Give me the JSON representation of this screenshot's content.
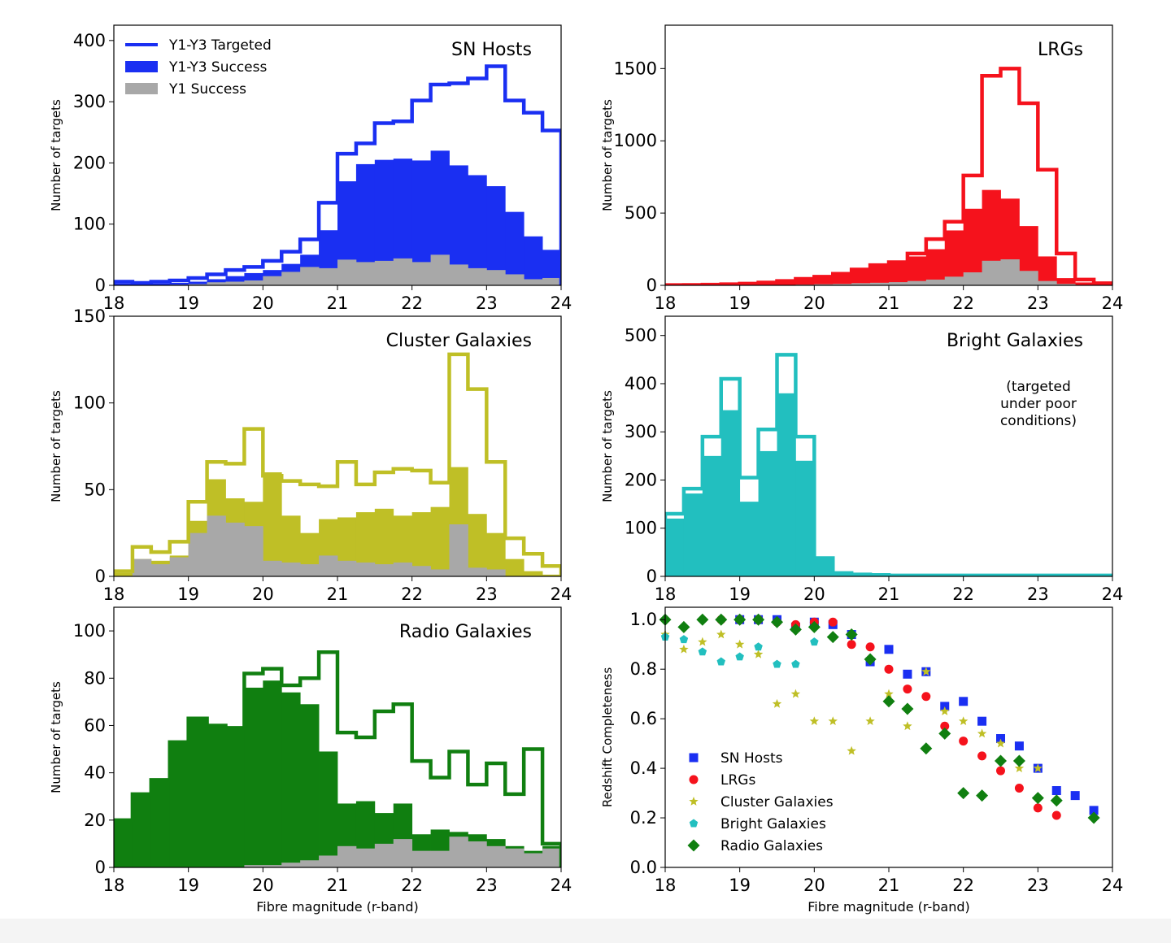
{
  "colors": {
    "sn": "#1a2ff2",
    "lrg": "#f5121c",
    "cluster": "#bfbf26",
    "bright": "#22bfbf",
    "radio": "#107f10",
    "y1": "#a8a8a8"
  },
  "legend_hist": {
    "targeted": "Y1-Y3 Targeted",
    "success": "Y1-Y3 Success",
    "y1": "Y1 Success"
  },
  "bright_note": [
    "(targeted",
    "under poor",
    "conditions)"
  ],
  "chart_data": [
    {
      "type": "area",
      "title": "SN Hosts",
      "xlabel": "",
      "ylabel": "Number of targets",
      "xlim": [
        18,
        24
      ],
      "ylim": [
        0,
        425
      ],
      "yticks": [
        0,
        100,
        200,
        300,
        400
      ],
      "xticks": [
        18,
        19,
        20,
        21,
        22,
        23,
        24
      ],
      "bin_start": 18,
      "bin_width": 0.25,
      "color": "sn",
      "legend": "top-left",
      "series": [
        {
          "name": "Y1-Y3 Targeted",
          "style": "step",
          "values": [
            6,
            4,
            6,
            8,
            12,
            18,
            25,
            30,
            40,
            55,
            75,
            135,
            215,
            232,
            265,
            268,
            302,
            328,
            330,
            338,
            358,
            302,
            282,
            253
          ]
        },
        {
          "name": "Y1-Y3 Success",
          "style": "fill",
          "values": [
            3,
            2,
            3,
            4,
            6,
            10,
            15,
            20,
            25,
            35,
            50,
            90,
            170,
            198,
            205,
            207,
            204,
            220,
            196,
            180,
            162,
            120,
            80,
            58
          ]
        },
        {
          "name": "Y1 Success",
          "style": "fill-gray",
          "values": [
            0,
            0,
            0,
            1,
            2,
            5,
            6,
            8,
            15,
            22,
            30,
            28,
            42,
            38,
            40,
            44,
            38,
            50,
            34,
            28,
            25,
            18,
            10,
            12
          ]
        }
      ]
    },
    {
      "type": "area",
      "title": "LRGs",
      "xlabel": "",
      "ylabel": "Number of targets",
      "xlim": [
        18,
        24
      ],
      "ylim": [
        0,
        1800
      ],
      "yticks": [
        0,
        500,
        1000,
        1500
      ],
      "xticks": [
        18,
        19,
        20,
        21,
        22,
        23,
        24
      ],
      "bin_start": 18,
      "bin_width": 0.25,
      "color": "lrg",
      "series": [
        {
          "name": "Y1-Y3 Targeted",
          "style": "step",
          "values": [
            2,
            3,
            5,
            8,
            12,
            20,
            30,
            45,
            60,
            80,
            110,
            140,
            160,
            220,
            320,
            440,
            760,
            1450,
            1500,
            1260,
            800,
            220,
            40,
            15
          ]
        },
        {
          "name": "Y1-Y3 Success",
          "style": "fill",
          "values": [
            1,
            2,
            4,
            7,
            10,
            18,
            28,
            40,
            55,
            75,
            100,
            130,
            150,
            200,
            250,
            380,
            530,
            660,
            600,
            410,
            200,
            50,
            20,
            5
          ]
        },
        {
          "name": "Y1 Success",
          "style": "fill-gray",
          "values": [
            0,
            0,
            0,
            0,
            1,
            2,
            3,
            5,
            8,
            10,
            15,
            18,
            22,
            30,
            40,
            60,
            90,
            170,
            180,
            100,
            30,
            10,
            2,
            1
          ]
        }
      ]
    },
    {
      "type": "area",
      "title": "Cluster Galaxies",
      "xlabel": "",
      "ylabel": "Number of targets",
      "xlim": [
        18,
        24
      ],
      "ylim": [
        0,
        150
      ],
      "yticks": [
        0,
        50,
        100,
        150
      ],
      "xticks": [
        18,
        19,
        20,
        21,
        22,
        23,
        24
      ],
      "bin_start": 18,
      "bin_width": 0.25,
      "color": "cluster",
      "series": [
        {
          "name": "Y1-Y3 Targeted",
          "style": "step",
          "values": [
            3,
            17,
            14,
            20,
            43,
            66,
            65,
            85,
            58,
            55,
            53,
            52,
            66,
            53,
            60,
            62,
            61,
            54,
            128,
            108,
            66,
            22,
            13,
            6
          ]
        },
        {
          "name": "Y1-Y3 Success",
          "style": "fill",
          "values": [
            2,
            10,
            9,
            12,
            32,
            56,
            45,
            43,
            60,
            35,
            25,
            33,
            34,
            37,
            39,
            35,
            37,
            40,
            63,
            36,
            25,
            10,
            3,
            1
          ]
        },
        {
          "name": "Y1 Success",
          "style": "fill-gray",
          "values": [
            0,
            10,
            7,
            11,
            25,
            35,
            31,
            29,
            9,
            8,
            7,
            12,
            9,
            8,
            7,
            8,
            6,
            4,
            30,
            5,
            4,
            0,
            0,
            0
          ]
        }
      ]
    },
    {
      "type": "area",
      "title": "Bright Galaxies",
      "xlabel": "",
      "ylabel": "Number of targets",
      "xlim": [
        18,
        24
      ],
      "ylim": [
        0,
        540
      ],
      "yticks": [
        0,
        100,
        200,
        300,
        400,
        500
      ],
      "xticks": [
        18,
        19,
        20,
        21,
        22,
        23,
        24
      ],
      "bin_start": 18,
      "bin_width": 0.25,
      "color": "bright",
      "series": [
        {
          "name": "Y1-Y3 Targeted",
          "style": "step",
          "values": [
            130,
            182,
            290,
            410,
            205,
            305,
            460,
            290,
            38,
            7,
            4,
            3,
            2,
            2,
            2,
            2,
            2,
            2,
            2,
            2,
            2,
            2,
            2,
            2
          ]
        },
        {
          "name": "Y1-Y3 Success",
          "style": "fill",
          "values": [
            120,
            172,
            250,
            345,
            155,
            260,
            380,
            240,
            38,
            7,
            4,
            3,
            2,
            2,
            2,
            2,
            2,
            2,
            2,
            2,
            2,
            2,
            2,
            2
          ]
        }
      ]
    },
    {
      "type": "area",
      "title": "Radio Galaxies",
      "xlabel": "Fibre magnitude (r-band)",
      "ylabel": "Number of targets",
      "xlim": [
        18,
        24
      ],
      "ylim": [
        0,
        110
      ],
      "yticks": [
        0,
        20,
        40,
        60,
        80,
        100
      ],
      "xticks": [
        18,
        19,
        20,
        21,
        22,
        23,
        24
      ],
      "bin_start": 18,
      "bin_width": 0.25,
      "color": "radio",
      "series": [
        {
          "name": "Y1-Y3 Targeted",
          "style": "step",
          "values": [
            20,
            31,
            37,
            53,
            63,
            60,
            59,
            82,
            84,
            77,
            80,
            91,
            57,
            55,
            66,
            69,
            45,
            38,
            49,
            35,
            44,
            31,
            50,
            10
          ]
        },
        {
          "name": "Y1-Y3 Success",
          "style": "fill",
          "values": [
            20,
            31,
            37,
            53,
            63,
            60,
            59,
            76,
            79,
            74,
            69,
            49,
            27,
            28,
            23,
            27,
            14,
            16,
            15,
            14,
            12,
            9,
            7,
            9
          ]
        },
        {
          "name": "Y1 Success",
          "style": "fill-gray",
          "values": [
            0,
            0,
            0,
            0,
            0,
            0,
            0,
            1,
            1,
            2,
            3,
            5,
            9,
            8,
            10,
            12,
            7,
            7,
            13,
            11,
            9,
            8,
            6,
            8
          ]
        }
      ]
    },
    {
      "type": "scatter",
      "title": "",
      "xlabel": "Fibre magnitude (r-band)",
      "ylabel": "Redshift Completeness",
      "xlim": [
        18,
        24
      ],
      "ylim": [
        0.0,
        1.05
      ],
      "yticks": [
        "0.0",
        "0.2",
        "0.4",
        "0.6",
        "0.8",
        "1.0"
      ],
      "xticks": [
        18,
        19,
        20,
        21,
        22,
        23,
        24
      ],
      "legend": "lower-left",
      "series": [
        {
          "name": "SN Hosts",
          "marker": "square",
          "color": "sn",
          "x": [
            19.0,
            19.25,
            19.5,
            19.75,
            20.0,
            20.25,
            20.5,
            20.75,
            21.0,
            21.25,
            21.5,
            21.75,
            22.0,
            22.25,
            22.5,
            22.75,
            23.0,
            23.25,
            23.5,
            23.75
          ],
          "y": [
            1.0,
            1.0,
            1.0,
            0.97,
            0.99,
            0.98,
            0.94,
            0.83,
            0.88,
            0.78,
            0.79,
            0.65,
            0.67,
            0.59,
            0.52,
            0.49,
            0.4,
            0.31,
            0.29,
            0.23
          ]
        },
        {
          "name": "LRGs",
          "marker": "circle",
          "color": "lrg",
          "x": [
            18.75,
            19.0,
            19.25,
            19.5,
            19.75,
            20.0,
            20.25,
            20.5,
            20.75,
            21.0,
            21.25,
            21.5,
            21.75,
            22.0,
            22.25,
            22.5,
            22.75,
            23.0,
            23.25
          ],
          "y": [
            1.0,
            1.0,
            1.0,
            0.99,
            0.98,
            0.99,
            0.99,
            0.9,
            0.89,
            0.8,
            0.72,
            0.69,
            0.57,
            0.51,
            0.45,
            0.39,
            0.32,
            0.24,
            0.21
          ]
        },
        {
          "name": "Cluster Galaxies",
          "marker": "star",
          "color": "cluster",
          "x": [
            18.0,
            18.25,
            18.5,
            18.75,
            19.0,
            19.25,
            19.5,
            19.75,
            20.0,
            20.25,
            20.5,
            20.75,
            21.0,
            21.25,
            21.5,
            21.75,
            22.0,
            22.25,
            22.5,
            22.75,
            23.0
          ],
          "y": [
            0.94,
            0.88,
            0.91,
            0.94,
            0.9,
            0.86,
            0.66,
            0.7,
            0.59,
            0.59,
            0.47,
            0.59,
            0.7,
            0.57,
            0.79,
            0.63,
            0.59,
            0.54,
            0.5,
            0.4,
            0.4
          ]
        },
        {
          "name": "Bright Galaxies",
          "marker": "pentagon",
          "color": "bright",
          "x": [
            18.0,
            18.25,
            18.5,
            18.75,
            19.0,
            19.25,
            19.5,
            19.75,
            20.0,
            20.25
          ],
          "y": [
            0.93,
            0.92,
            0.87,
            0.83,
            0.85,
            0.89,
            0.82,
            0.82,
            0.91,
            0.93
          ]
        },
        {
          "name": "Radio Galaxies",
          "marker": "diamond",
          "color": "radio",
          "x": [
            18.0,
            18.25,
            18.5,
            18.75,
            19.0,
            19.25,
            19.5,
            19.75,
            20.0,
            20.25,
            20.5,
            20.75,
            21.0,
            21.25,
            21.5,
            21.75,
            22.0,
            22.25,
            22.5,
            22.75,
            23.0,
            23.25,
            23.75
          ],
          "y": [
            1.0,
            0.97,
            1.0,
            1.0,
            1.0,
            1.0,
            0.99,
            0.96,
            0.97,
            0.93,
            0.94,
            0.84,
            0.67,
            0.64,
            0.48,
            0.54,
            0.3,
            0.29,
            0.43,
            0.43,
            0.28,
            0.27,
            0.2
          ]
        }
      ]
    }
  ]
}
